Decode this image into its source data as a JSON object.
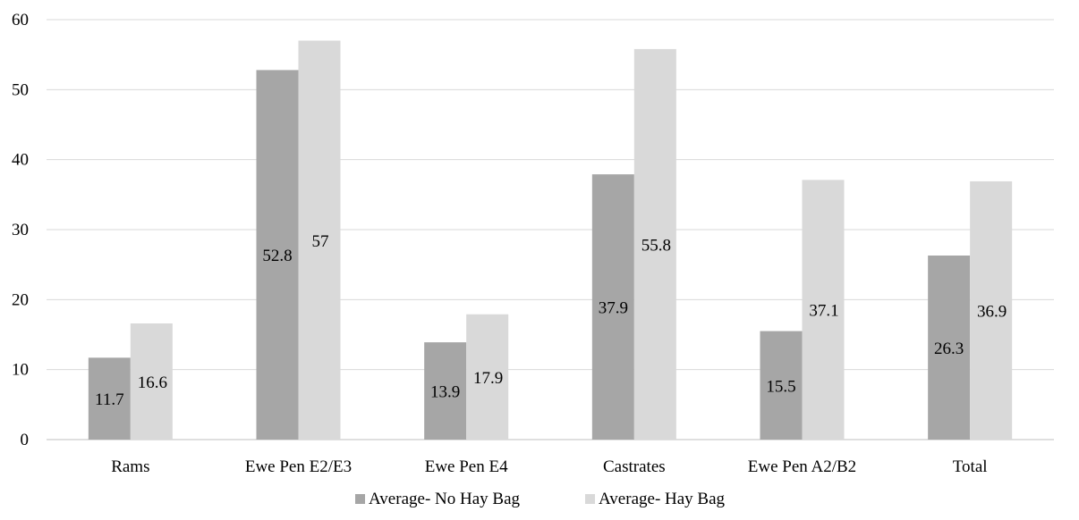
{
  "chart_data": {
    "type": "bar",
    "categories": [
      "Rams",
      "Ewe Pen E2/E3",
      "Ewe Pen E4",
      "Castrates",
      "Ewe Pen A2/B2",
      "Total"
    ],
    "series": [
      {
        "name": "Average- No Hay Bag",
        "values": [
          11.7,
          52.8,
          13.9,
          37.9,
          15.5,
          26.3
        ],
        "color": "#a6a6a6"
      },
      {
        "name": "Average- Hay Bag",
        "values": [
          16.6,
          57,
          17.9,
          55.8,
          37.1,
          36.9
        ],
        "color": "#d9d9d9"
      }
    ],
    "data_labels": [
      [
        "11.7",
        "52.8",
        "13.9",
        "37.9",
        "15.5",
        "26.3"
      ],
      [
        "16.6",
        "57",
        "17.9",
        "55.8",
        "37.1",
        "36.9"
      ]
    ],
    "yticks": [
      "0",
      "10",
      "20",
      "30",
      "40",
      "50",
      "60"
    ],
    "ylim": [
      0,
      60
    ],
    "grid": true,
    "legend_position": "bottom",
    "title": "",
    "xlabel": "",
    "ylabel": ""
  }
}
